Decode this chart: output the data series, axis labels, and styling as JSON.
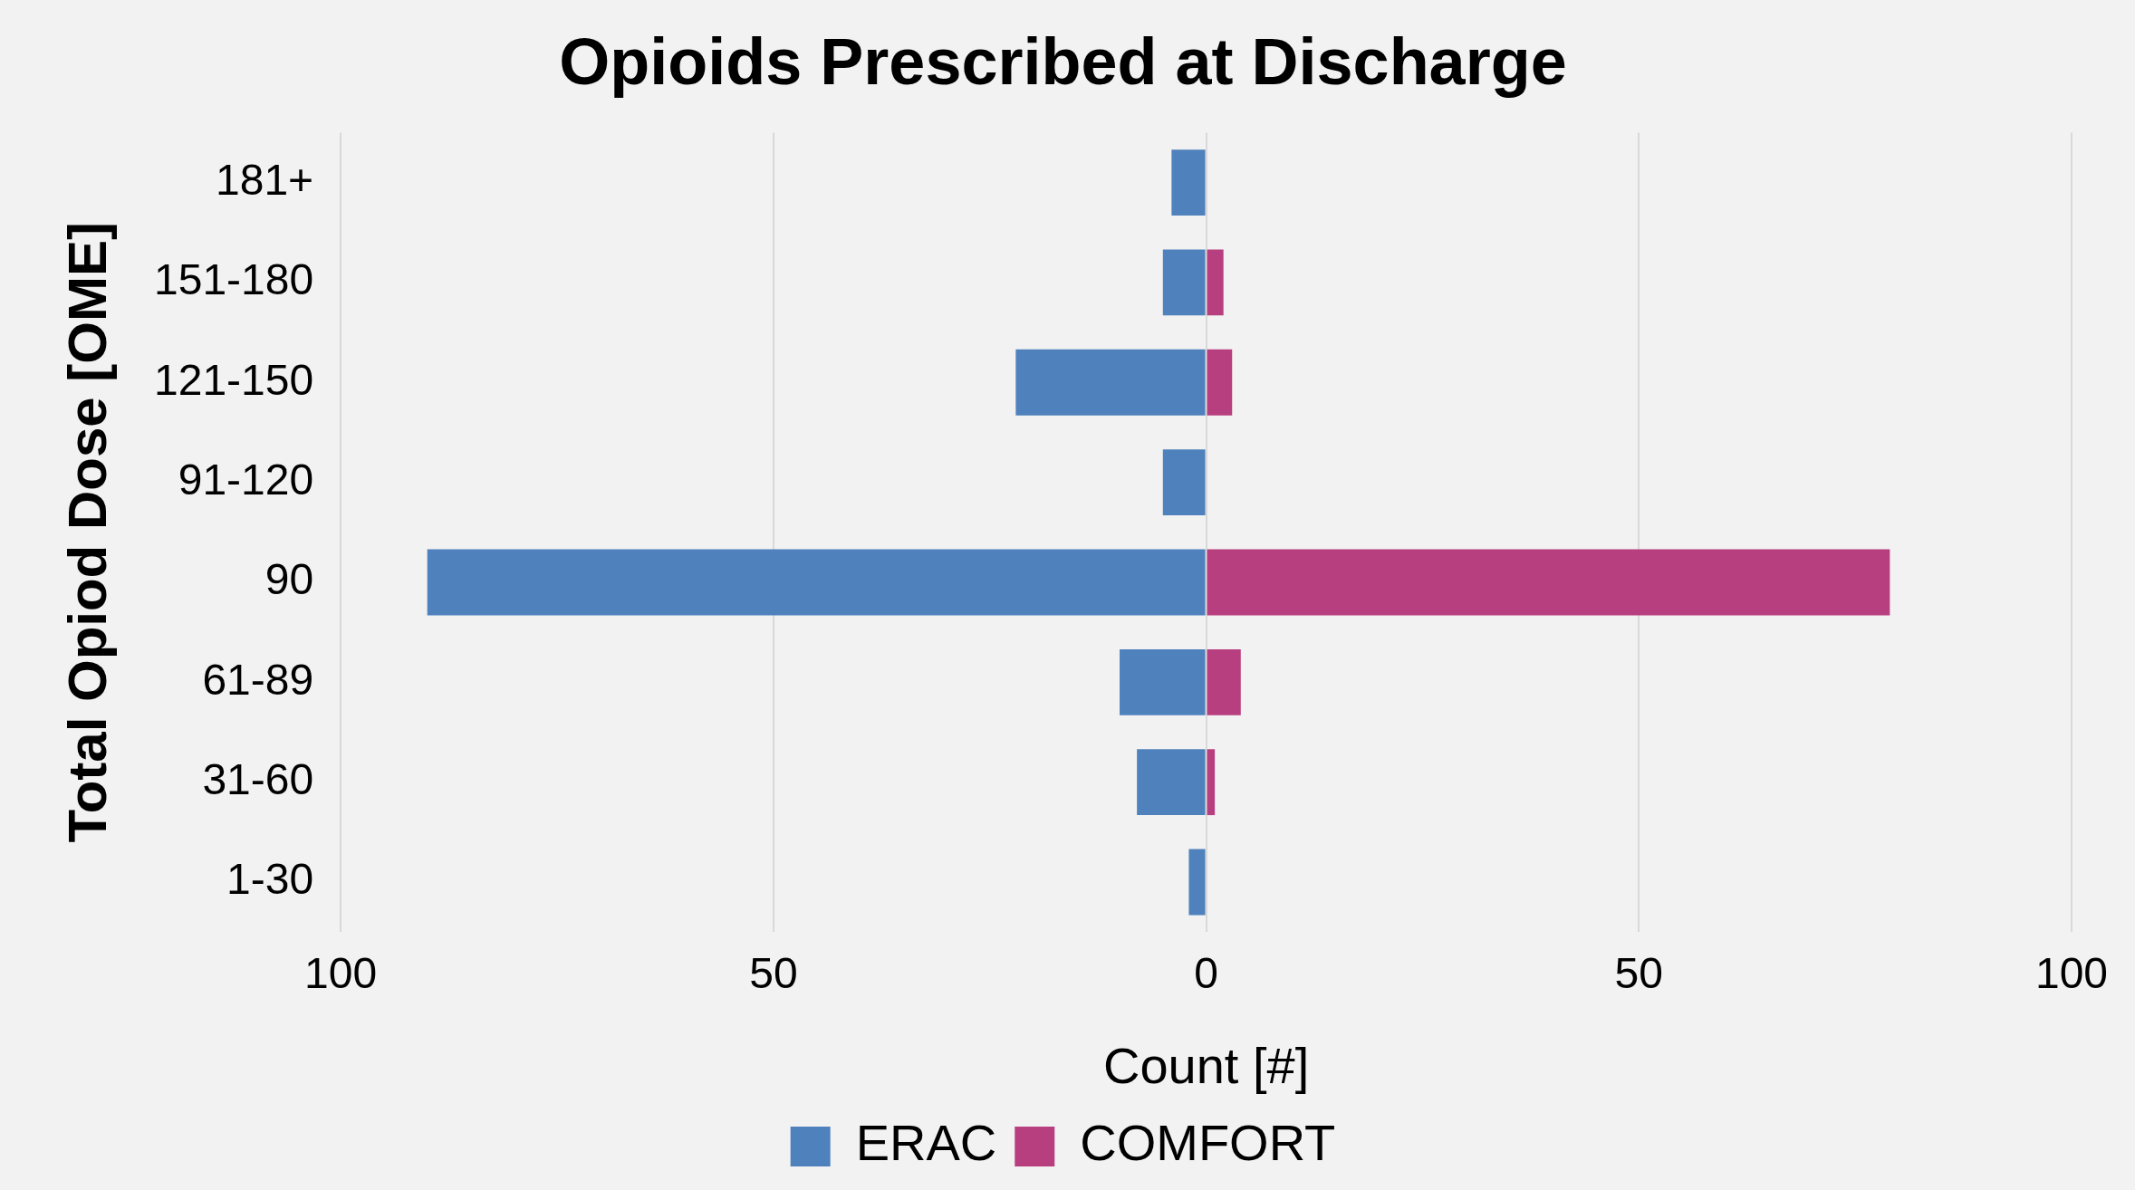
{
  "chart_data": {
    "type": "bar",
    "orientation": "horizontal",
    "stacked": true,
    "title": "Opioids Prescribed at Discharge",
    "xlabel": "Count [#]",
    "ylabel": "Total Opiod Dose [OME]",
    "categories": [
      "181+",
      "151-180",
      "121-150",
      "91-120",
      "90",
      "61-89",
      "31-60",
      "1-30"
    ],
    "series": [
      {
        "name": "ERAC",
        "color": "#4f81bd",
        "values": [
          -4,
          -5,
          -22,
          -5,
          -90,
          -10,
          -8,
          -2
        ]
      },
      {
        "name": "COMFORT",
        "color": "#b83f7f",
        "values": [
          0,
          2,
          3,
          0,
          79,
          4,
          1,
          0
        ]
      }
    ],
    "xlim": [
      -100,
      100
    ],
    "xticks": [
      {
        "value": -100,
        "label": "100"
      },
      {
        "value": -50,
        "label": "50"
      },
      0,
      50,
      100
    ],
    "grid": "x",
    "legend": "bottom"
  }
}
